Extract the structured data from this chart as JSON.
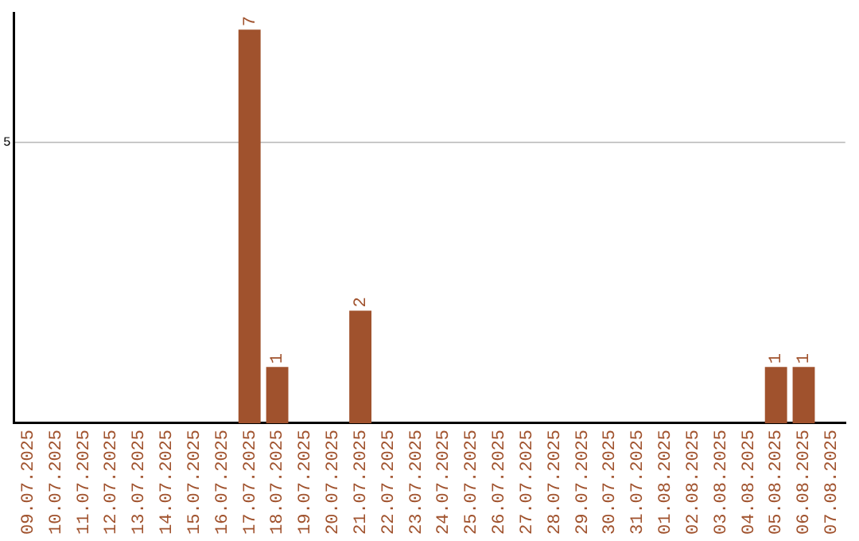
{
  "chart_data": {
    "type": "bar",
    "categories": [
      "09.07.2025",
      "10.07.2025",
      "11.07.2025",
      "12.07.2025",
      "13.07.2025",
      "14.07.2025",
      "15.07.2025",
      "16.07.2025",
      "17.07.2025",
      "18.07.2025",
      "19.07.2025",
      "20.07.2025",
      "21.07.2025",
      "22.07.2025",
      "23.07.2025",
      "24.07.2025",
      "25.07.2025",
      "26.07.2025",
      "27.07.2025",
      "28.07.2025",
      "29.07.2025",
      "30.07.2025",
      "31.07.2025",
      "01.08.2025",
      "02.08.2025",
      "03.08.2025",
      "04.08.2025",
      "05.08.2025",
      "06.08.2025",
      "07.08.2025"
    ],
    "values": [
      0,
      0,
      0,
      0,
      0,
      0,
      0,
      0,
      7,
      1,
      0,
      0,
      2,
      0,
      0,
      0,
      0,
      0,
      0,
      0,
      0,
      0,
      0,
      0,
      0,
      0,
      0,
      1,
      1,
      0
    ],
    "value_labels": [
      null,
      null,
      null,
      null,
      null,
      null,
      null,
      null,
      "7",
      "1",
      null,
      null,
      "2",
      null,
      null,
      null,
      null,
      null,
      null,
      null,
      null,
      null,
      null,
      null,
      null,
      null,
      null,
      "1",
      "1",
      null
    ],
    "color": "#a0522d",
    "ylim": [
      0,
      7.3
    ],
    "yticks": [
      5
    ],
    "grid": "y",
    "legend": false
  }
}
